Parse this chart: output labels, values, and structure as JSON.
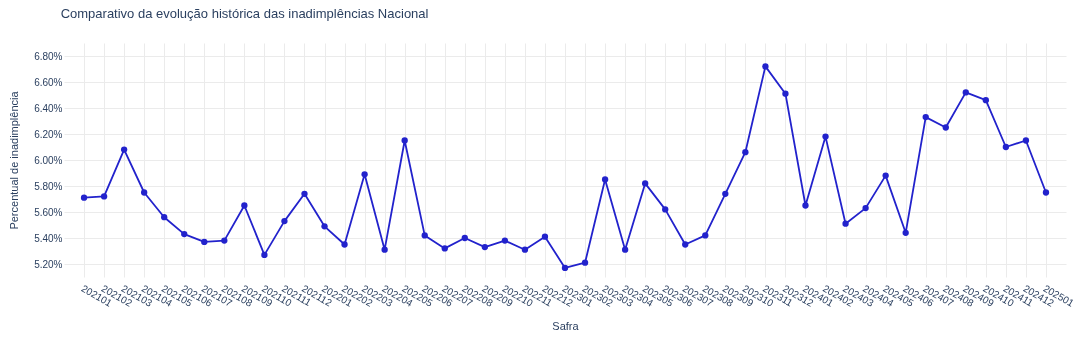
{
  "chart_data": {
    "type": "line",
    "title": "Comparativo da evolução histórica das inadimplências Nacional",
    "xlabel": "Safra",
    "ylabel": "Percentual de inadimplência",
    "categories": [
      "202101",
      "202102",
      "202103",
      "202104",
      "202105",
      "202106",
      "202107",
      "202108",
      "202109",
      "202110",
      "202111",
      "202112",
      "202201",
      "202202",
      "202203",
      "202204",
      "202205",
      "202206",
      "202207",
      "202208",
      "202209",
      "202210",
      "202211",
      "202212",
      "202301",
      "202302",
      "202303",
      "202304",
      "202305",
      "202306",
      "202307",
      "202308",
      "202309",
      "202310",
      "202311",
      "202312",
      "202401",
      "202402",
      "202403",
      "202404",
      "202405",
      "202406",
      "202407",
      "202408",
      "202409",
      "202410",
      "202411",
      "202412",
      "202501"
    ],
    "series": [
      {
        "color": "#2222cc",
        "values": [
          5.71,
          5.72,
          6.08,
          5.75,
          5.56,
          5.43,
          5.37,
          5.38,
          5.65,
          5.27,
          5.53,
          5.74,
          5.49,
          5.35,
          5.89,
          5.31,
          6.15,
          5.42,
          5.32,
          5.4,
          5.33,
          5.38,
          5.31,
          5.41,
          5.17,
          5.21,
          5.85,
          5.31,
          5.82,
          5.62,
          5.35,
          5.42,
          5.74,
          6.06,
          6.72,
          6.51,
          5.65,
          6.18,
          5.51,
          5.63,
          5.88,
          5.44,
          6.33,
          6.25,
          6.52,
          6.46,
          6.1,
          6.15,
          5.75
        ]
      }
    ],
    "ylim": [
      5.1,
      6.9
    ],
    "yticks": [
      {
        "value": 5.2,
        "label": "5.20%"
      },
      {
        "value": 5.4,
        "label": "5.40%"
      },
      {
        "value": 5.6,
        "label": "5.60%"
      },
      {
        "value": 5.8,
        "label": "5.80%"
      },
      {
        "value": 6.0,
        "label": "6.00%"
      },
      {
        "value": 6.2,
        "label": "6.20%"
      },
      {
        "value": 6.4,
        "label": "6.40%"
      },
      {
        "value": 6.6,
        "label": "6.60%"
      },
      {
        "value": 6.8,
        "label": "6.80%"
      }
    ],
    "grid": true,
    "legend": false,
    "marker": "circle",
    "line_style": "solid"
  }
}
